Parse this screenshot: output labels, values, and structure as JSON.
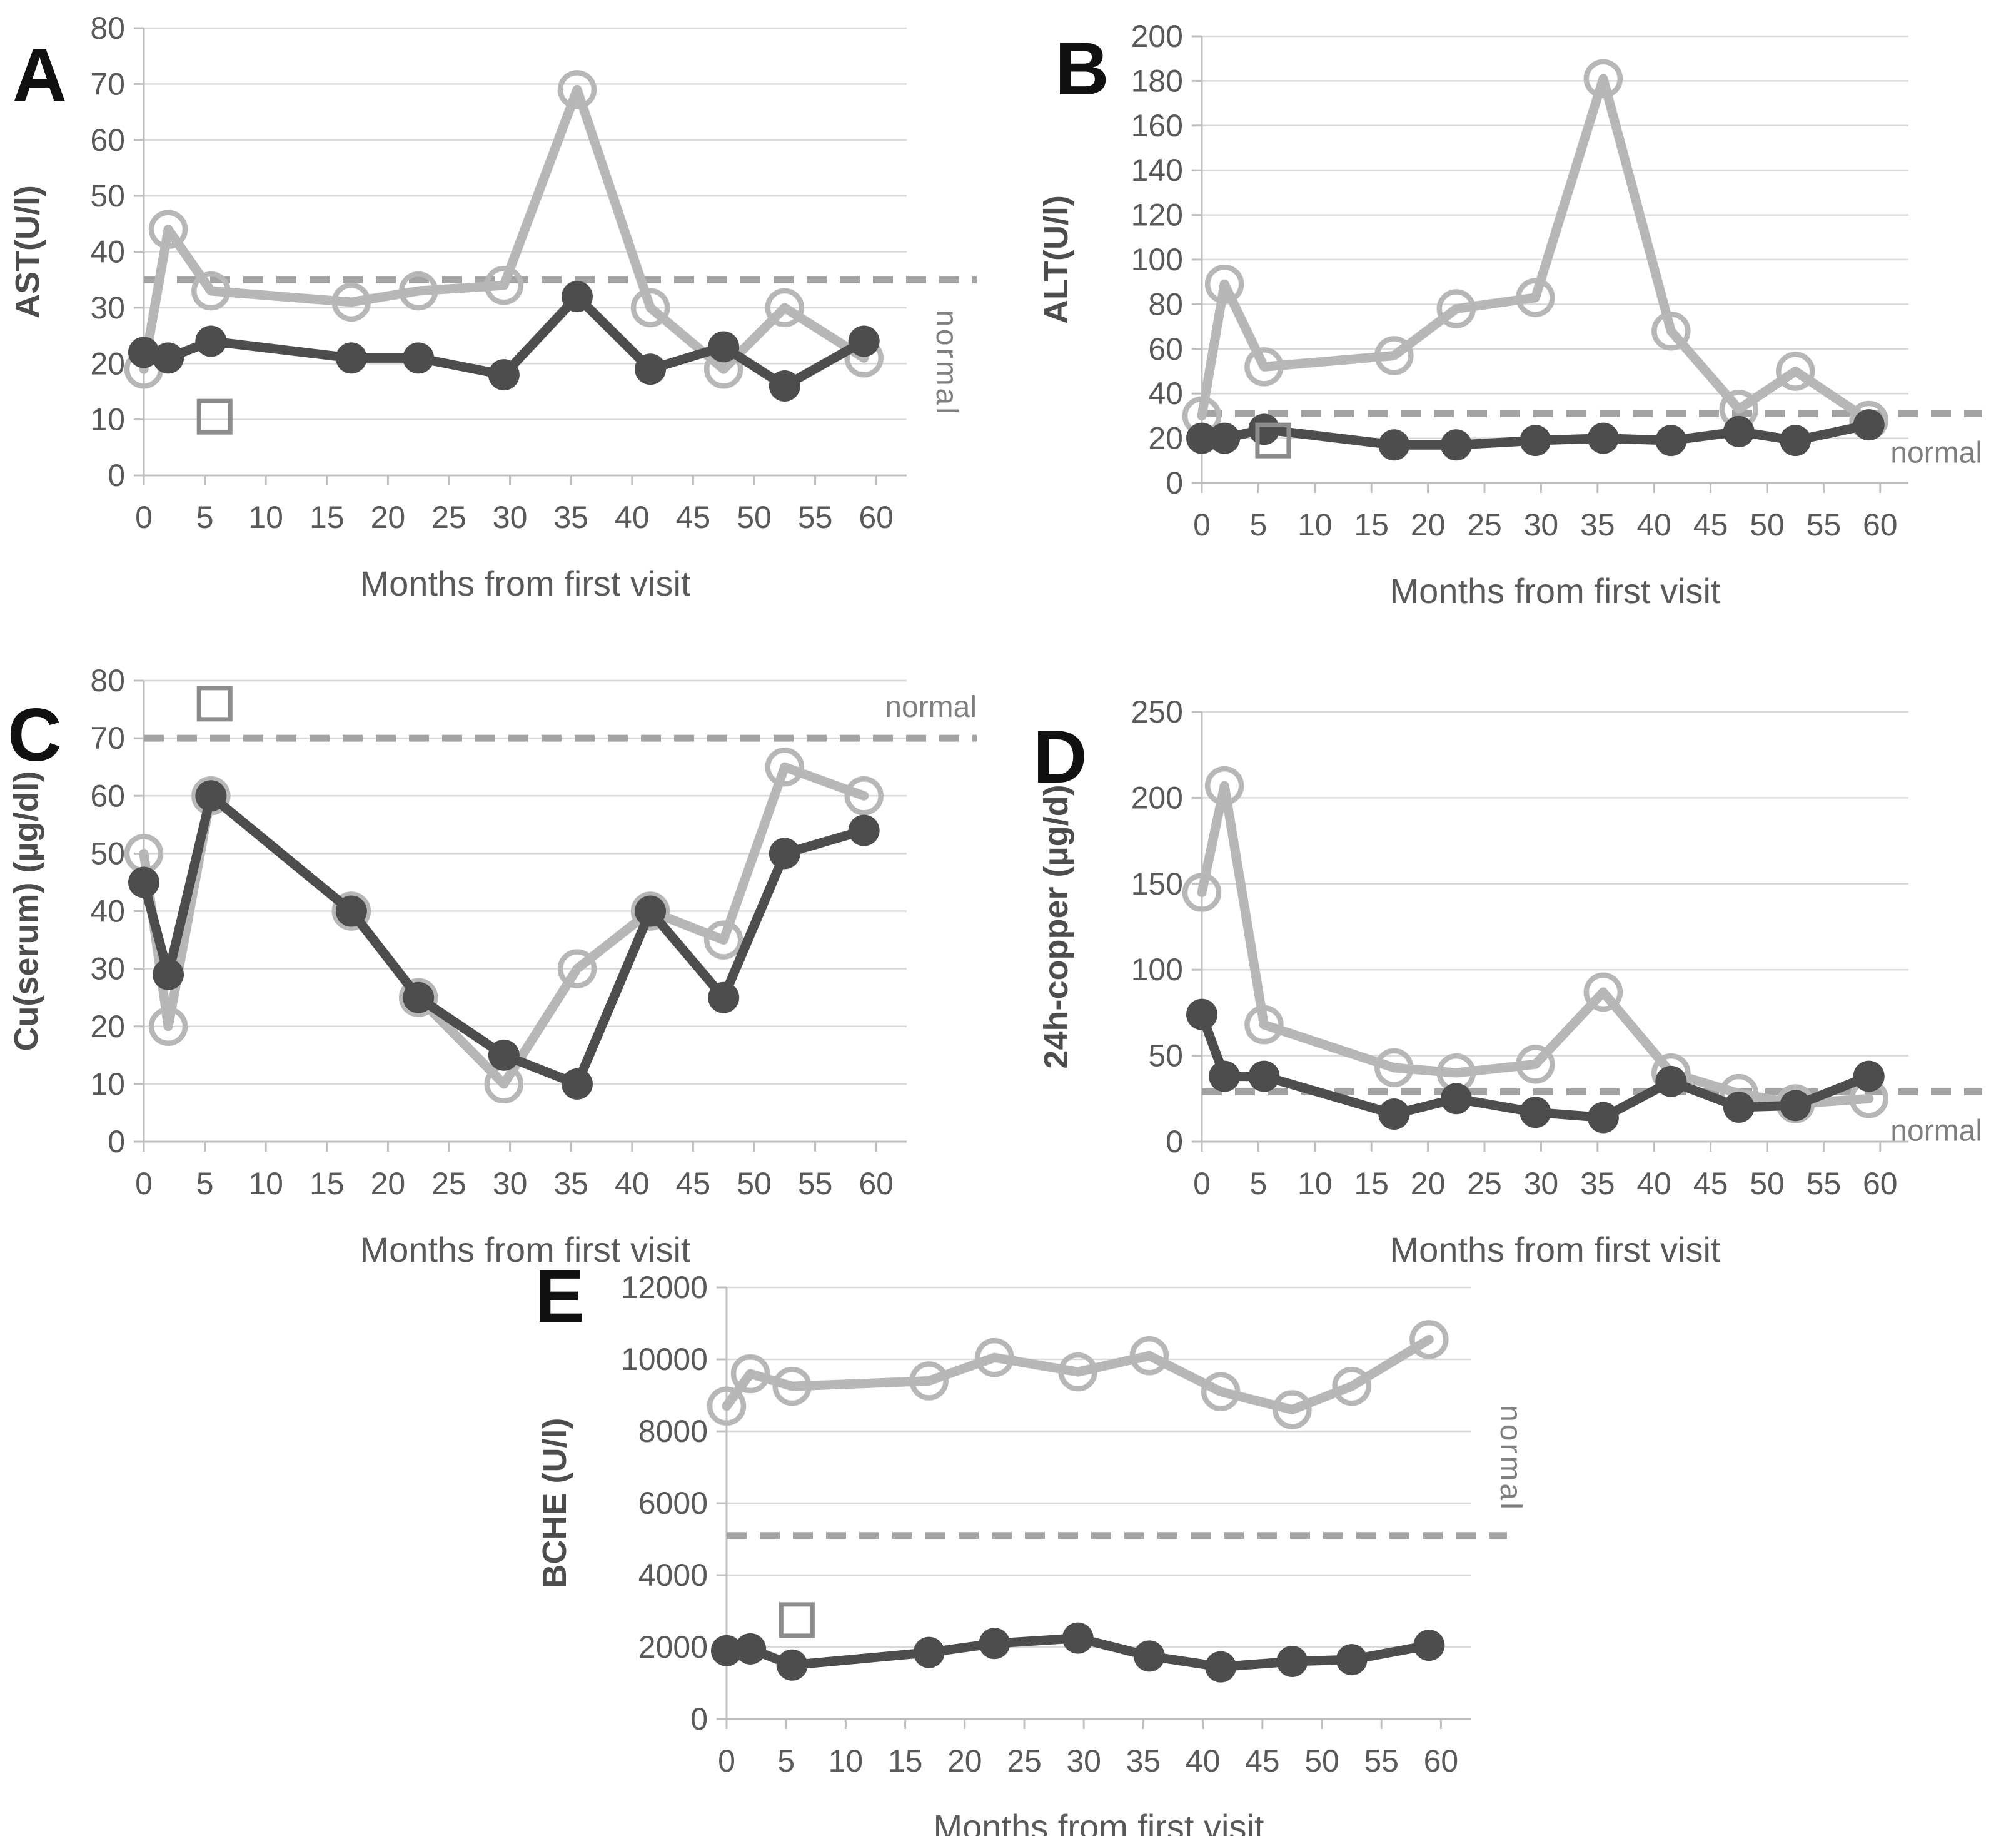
{
  "figure": {
    "x_axis_label": "Months from first visit",
    "normal_label": "normal",
    "panel_letters": [
      "A",
      "B",
      "C",
      "D",
      "E"
    ],
    "colors": {
      "series_open_circle": "#b7b7b7",
      "series_filled_circle": "#4d4d4d",
      "normal_dashed_line": "#a3a3a3",
      "gridline": "#d9d9d9",
      "axis_line": "#bfbfbf",
      "tick_text": "#595959",
      "axis_title_text": "#4d4d4d",
      "normal_text": "#7f7f7f",
      "panel_letter_text": "#111111",
      "square_marker": "#8c8c8c"
    }
  },
  "chart_data": [
    {
      "panel": "A",
      "type": "line",
      "ylabel": "AST(U/l)",
      "xlabel": "Months from first visit",
      "ylim": [
        0,
        80
      ],
      "ytick_step": 10,
      "xticks": [
        0,
        5,
        10,
        15,
        20,
        25,
        30,
        35,
        40,
        45,
        50,
        55,
        60
      ],
      "x_months": [
        0,
        2,
        5.5,
        17,
        22.5,
        29.5,
        35.5,
        41.5,
        47.5,
        52.5,
        59
      ],
      "series": [
        {
          "name": "open-circle",
          "marker": "open-circle",
          "values": [
            19,
            44,
            33,
            31,
            33,
            34,
            69,
            30,
            19,
            30,
            21
          ]
        },
        {
          "name": "filled-circle",
          "marker": "filled-circle",
          "values": [
            22,
            21,
            24,
            21,
            21,
            18,
            32,
            19,
            23,
            16,
            24
          ]
        }
      ],
      "normal_line_y": 35,
      "normal_label_position": "vertical-below-line",
      "square_marker": {
        "x": 5.8,
        "y": 10.5
      }
    },
    {
      "panel": "B",
      "type": "line",
      "ylabel": "ALT(U/l)",
      "xlabel": "Months from first visit",
      "ylim": [
        0,
        200
      ],
      "ytick_step": 20,
      "xticks": [
        0,
        5,
        10,
        15,
        20,
        25,
        30,
        35,
        40,
        45,
        50,
        55,
        60
      ],
      "x_months": [
        0,
        2,
        5.5,
        17,
        22.5,
        29.5,
        35.5,
        41.5,
        47.5,
        52.5,
        59
      ],
      "series": [
        {
          "name": "open-circle",
          "marker": "open-circle",
          "values": [
            30,
            89,
            52,
            57,
            78,
            83,
            181,
            68,
            33,
            50,
            28
          ]
        },
        {
          "name": "filled-circle",
          "marker": "filled-circle",
          "values": [
            20,
            20,
            24,
            17,
            17,
            19,
            20,
            19,
            23,
            19,
            26
          ]
        }
      ],
      "normal_line_y": 31,
      "normal_label_position": "horizontal-below-line",
      "square_marker": {
        "x": 6.3,
        "y": 19
      }
    },
    {
      "panel": "C",
      "type": "line",
      "ylabel": "Cu(serum) (µg/dl)",
      "xlabel": "Months from first visit",
      "ylim": [
        0,
        80
      ],
      "ytick_step": 10,
      "xticks": [
        0,
        5,
        10,
        15,
        20,
        25,
        30,
        35,
        40,
        45,
        50,
        55,
        60
      ],
      "x_months": [
        0,
        2,
        5.5,
        17,
        22.5,
        29.5,
        35.5,
        41.5,
        47.5,
        52.5,
        59
      ],
      "series": [
        {
          "name": "open-circle",
          "marker": "open-circle",
          "values": [
            50,
            20,
            60,
            40,
            25,
            10,
            30,
            40,
            35,
            65,
            60
          ]
        },
        {
          "name": "filled-circle",
          "marker": "filled-circle",
          "values": [
            45,
            29,
            60,
            40,
            25,
            15,
            10,
            40,
            25,
            50,
            54
          ]
        }
      ],
      "normal_line_y": 70,
      "normal_label_position": "horizontal-above-line",
      "square_marker": {
        "x": 5.8,
        "y": 76
      }
    },
    {
      "panel": "D",
      "type": "line",
      "ylabel": "24h-copper (µg/d)",
      "xlabel": "Months from first visit",
      "ylim": [
        0,
        250
      ],
      "ytick_step": 50,
      "xticks": [
        0,
        5,
        10,
        15,
        20,
        25,
        30,
        35,
        40,
        45,
        50,
        55,
        60
      ],
      "x_months": [
        0,
        2,
        5.5,
        17,
        22.5,
        29.5,
        35.5,
        41.5,
        47.5,
        52.5,
        59
      ],
      "series": [
        {
          "name": "open-circle",
          "marker": "open-circle",
          "values": [
            145,
            207,
            68,
            43,
            40,
            45,
            87,
            40,
            28,
            22,
            25
          ]
        },
        {
          "name": "filled-circle",
          "marker": "filled-circle",
          "values": [
            74,
            38,
            38,
            16,
            25,
            17,
            14,
            35,
            20,
            21,
            38
          ]
        }
      ],
      "normal_line_y": 29,
      "normal_label_position": "horizontal-below-line",
      "square_marker": null
    },
    {
      "panel": "E",
      "type": "line",
      "ylabel": "BCHE (U/l)",
      "xlabel": "Months from first visit",
      "ylim": [
        0,
        12000
      ],
      "ytick_step": 2000,
      "xticks": [
        0,
        5,
        10,
        15,
        20,
        25,
        30,
        35,
        40,
        45,
        50,
        55,
        60
      ],
      "x_months": [
        0,
        2,
        5.5,
        17,
        22.5,
        29.5,
        35.5,
        41.5,
        47.5,
        52.5,
        59
      ],
      "series": [
        {
          "name": "open-circle",
          "marker": "open-circle",
          "values": [
            8700,
            9600,
            9250,
            9400,
            10050,
            9650,
            10100,
            9100,
            8600,
            9250,
            10550
          ]
        },
        {
          "name": "filled-circle",
          "marker": "filled-circle",
          "values": [
            1900,
            1950,
            1500,
            1850,
            2100,
            2250,
            1750,
            1450,
            1600,
            1650,
            2050
          ]
        }
      ],
      "normal_line_y": 5100,
      "normal_label_position": "vertical-above-line",
      "square_marker": {
        "x": 5.9,
        "y": 2750
      }
    }
  ]
}
